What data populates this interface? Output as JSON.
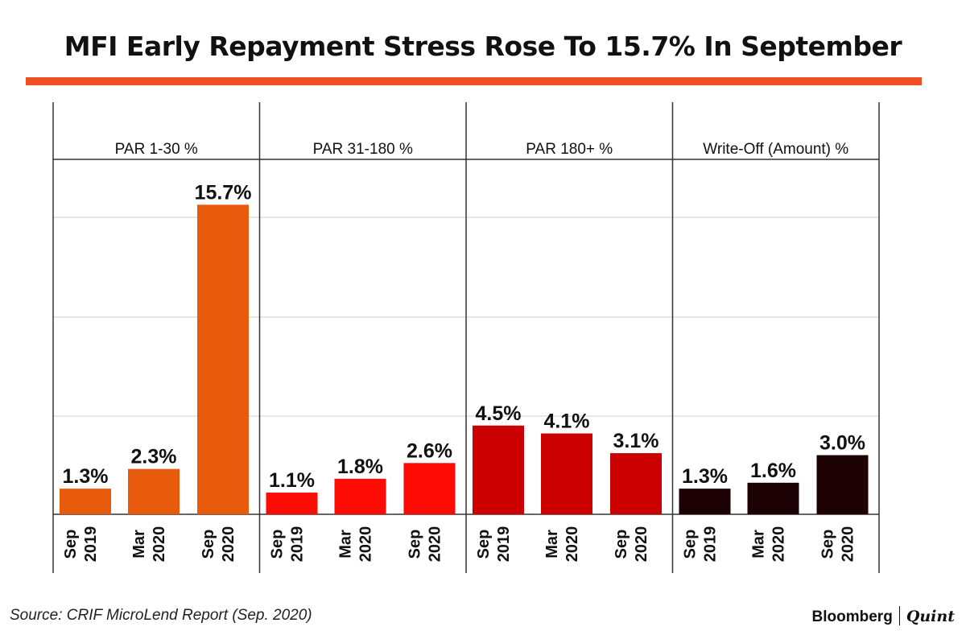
{
  "title": "MFI Early Repayment Stress Rose To 15.7% In September",
  "source": "Source: CRIF MicroLend Report (Sep. 2020)",
  "brand": {
    "name": "Bloomberg",
    "partner": "Quint"
  },
  "colors": {
    "accent": "#f04e23",
    "grid": "#cfcfcf",
    "frame": "#333333"
  },
  "chart_data": {
    "type": "bar",
    "ylim": [
      0,
      18
    ],
    "grid": true,
    "categories": [
      {
        "month": "Sep",
        "year": "2019"
      },
      {
        "month": "Mar",
        "year": "2020"
      },
      {
        "month": "Sep",
        "year": "2020"
      }
    ],
    "panels": [
      {
        "name": "PAR 1-30 %",
        "color": "#e85a0c",
        "values": [
          1.3,
          2.3,
          15.7
        ],
        "labels": [
          "1.3%",
          "2.3%",
          "15.7%"
        ]
      },
      {
        "name": "PAR 31-180 %",
        "color": "#fd0b05",
        "values": [
          1.1,
          1.8,
          2.6
        ],
        "labels": [
          "1.1%",
          "1.8%",
          "2.6%"
        ]
      },
      {
        "name": "PAR 180+ %",
        "color": "#cc0000",
        "values": [
          4.5,
          4.1,
          3.1
        ],
        "labels": [
          "4.5%",
          "4.1%",
          "3.1%"
        ]
      },
      {
        "name": "Write-Off (Amount) %",
        "color": "#1c0204",
        "values": [
          1.3,
          1.6,
          3.0
        ],
        "labels": [
          "1.3%",
          "1.6%",
          "3.0%"
        ]
      }
    ]
  }
}
